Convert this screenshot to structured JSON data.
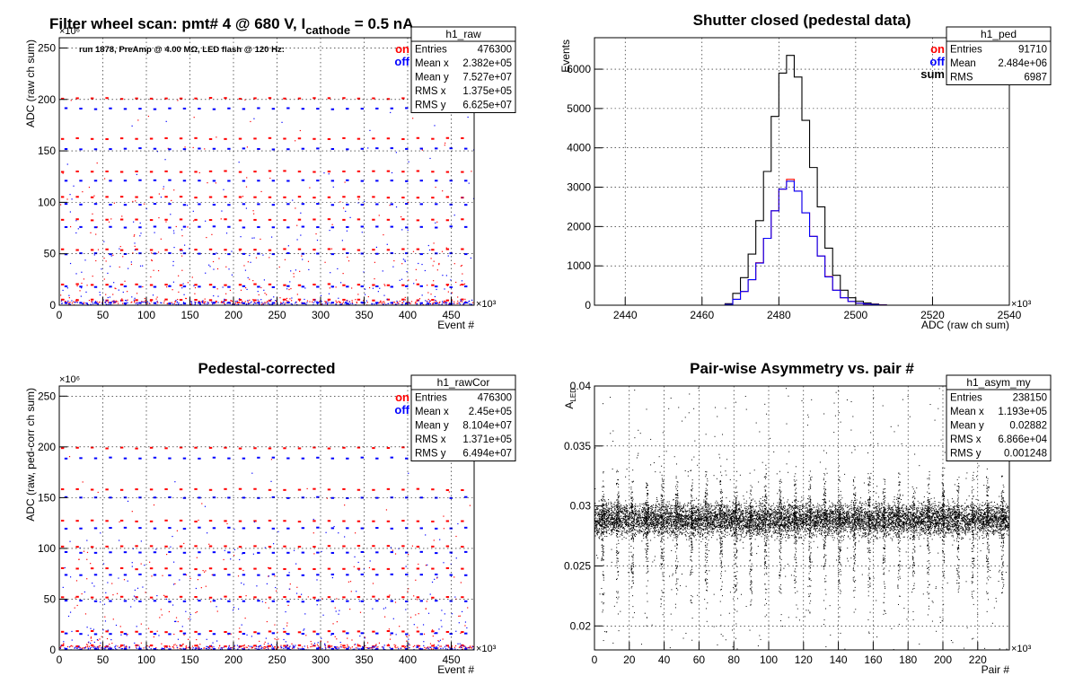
{
  "figure_title": {
    "main": "Filter wheel scan: pmt#   4 @   680 V, I",
    "sub": "cathode",
    "tail": " = 0.5 nA"
  },
  "colors": {
    "on": "#ff0000",
    "off": "#0000ff",
    "sum": "#000000",
    "frame": "#000000",
    "grid": "#000000"
  },
  "chart_data": [
    {
      "id": "raw",
      "type": "scatter",
      "title": "",
      "annotation": "run 1878, PreAmp @ 4.00 MΩ, LED flash @  120 Hz:",
      "xlabel": "Event #",
      "ylabel": "ADC (raw ch sum)",
      "x_multiplier": "×10³",
      "y_multiplier": "×10⁶",
      "xlim": [
        0,
        476300
      ],
      "ylim": [
        0,
        260
      ],
      "xticks": [
        0,
        50,
        100,
        150,
        200,
        250,
        300,
        350,
        400,
        450
      ],
      "yticks": [
        0,
        50,
        100,
        150,
        200,
        250
      ],
      "grid": true,
      "legend": [
        {
          "label": "on",
          "color": "#ff0000"
        },
        {
          "label": "off",
          "color": "#0000ff"
        }
      ],
      "legend_placement": "top-right",
      "stats": {
        "name": "h1_raw",
        "rows": [
          [
            "Entries",
            "476300"
          ],
          [
            "Mean x",
            "2.382e+05"
          ],
          [
            "Mean y",
            "7.527e+07"
          ],
          [
            "RMS x",
            "1.375e+05"
          ],
          [
            "RMS y",
            "6.625e+07"
          ]
        ]
      },
      "series": [
        {
          "name": "on",
          "color": "#ff0000",
          "levels": [
            201,
            162,
            130,
            105,
            83,
            54,
            20,
            5
          ]
        },
        {
          "name": "off",
          "color": "#0000ff",
          "levels": [
            191,
            152,
            121,
            98,
            76,
            50,
            18,
            2
          ]
        }
      ],
      "period_events": 17000
    },
    {
      "id": "ped",
      "type": "histogram",
      "title": "Shutter closed (pedestal data)",
      "xlabel": "ADC (raw ch sum)",
      "ylabel": "Events",
      "x_multiplier": "×10³",
      "xlim": [
        2432,
        2540
      ],
      "ylim": [
        0,
        6800
      ],
      "xticks": [
        2440,
        2460,
        2480,
        2500,
        2520,
        2540
      ],
      "yticks": [
        0,
        1000,
        2000,
        3000,
        4000,
        5000,
        6000
      ],
      "grid": true,
      "legend": [
        {
          "label": "on",
          "color": "#ff0000"
        },
        {
          "label": "off",
          "color": "#0000ff"
        },
        {
          "label": "sum",
          "color": "#000000"
        }
      ],
      "legend_placement": "top-right",
      "stats": {
        "name": "h1_ped",
        "rows": [
          [
            "Entries",
            "91710"
          ],
          [
            "Mean",
            "2.484e+06"
          ],
          [
            "RMS",
            "6987"
          ]
        ]
      },
      "bins": [
        2466,
        2468,
        2470,
        2472,
        2474,
        2476,
        2478,
        2480,
        2482,
        2484,
        2486,
        2488,
        2490,
        2492,
        2494,
        2496,
        2498,
        2500,
        2502,
        2504,
        2506
      ],
      "series": [
        {
          "name": "sum",
          "color": "#000000",
          "values": [
            40,
            300,
            700,
            1300,
            2150,
            3400,
            4800,
            5900,
            6350,
            5800,
            4700,
            3500,
            2500,
            1450,
            760,
            380,
            190,
            100,
            60,
            30,
            10
          ]
        },
        {
          "name": "on",
          "color": "#ff0000",
          "values": [
            20,
            150,
            350,
            650,
            1080,
            1700,
            2400,
            2950,
            3200,
            2900,
            2350,
            1750,
            1250,
            730,
            380,
            190,
            95,
            50,
            30,
            15,
            5
          ]
        },
        {
          "name": "off",
          "color": "#0000ff",
          "values": [
            20,
            150,
            350,
            650,
            1070,
            1700,
            2400,
            2950,
            3150,
            2900,
            2350,
            1750,
            1250,
            720,
            380,
            190,
            95,
            50,
            30,
            15,
            5
          ]
        }
      ]
    },
    {
      "id": "rawCor",
      "type": "scatter",
      "title": "Pedestal-corrected",
      "xlabel": "Event #",
      "ylabel": "ADC (raw, ped-corr ch sum)",
      "x_multiplier": "×10³",
      "y_multiplier": "×10⁶",
      "xlim": [
        0,
        476300
      ],
      "ylim": [
        0,
        260
      ],
      "xticks": [
        0,
        50,
        100,
        150,
        200,
        250,
        300,
        350,
        400,
        450
      ],
      "yticks": [
        0,
        50,
        100,
        150,
        200,
        250
      ],
      "grid": true,
      "legend": [
        {
          "label": "on",
          "color": "#ff0000"
        },
        {
          "label": "off",
          "color": "#0000ff"
        }
      ],
      "legend_placement": "top-right",
      "stats": {
        "name": "h1_rawCor",
        "rows": [
          [
            "Entries",
            "476300"
          ],
          [
            "Mean x",
            "2.45e+05"
          ],
          [
            "Mean y",
            "8.104e+07"
          ],
          [
            "RMS x",
            "1.371e+05"
          ],
          [
            "RMS y",
            "6.494e+07"
          ]
        ]
      },
      "series": [
        {
          "name": "on",
          "color": "#ff0000",
          "levels": [
            199,
            158,
            127,
            102,
            80,
            52,
            18,
            4
          ]
        },
        {
          "name": "off",
          "color": "#0000ff",
          "levels": [
            189,
            150,
            120,
            96,
            74,
            48,
            16,
            1
          ]
        }
      ],
      "period_events": 17000
    },
    {
      "id": "asym",
      "type": "scatter",
      "title": "Pair-wise Asymmetry vs. pair #",
      "xlabel": "Pair #",
      "ylabel": "A_LED",
      "x_multiplier": "×10³",
      "xlim": [
        0,
        238150
      ],
      "ylim": [
        0.018,
        0.04
      ],
      "xticks": [
        0,
        20,
        40,
        60,
        80,
        100,
        120,
        140,
        160,
        180,
        200,
        220
      ],
      "yticks": [
        0.02,
        0.025,
        0.03,
        0.035,
        0.04
      ],
      "grid": true,
      "stats": {
        "name": "h1_asym_my",
        "rows": [
          [
            "Entries",
            "238150"
          ],
          [
            "Mean x",
            "1.193e+05"
          ],
          [
            "Mean y",
            "0.02882"
          ],
          [
            "RMS x",
            "6.866e+04"
          ],
          [
            "RMS y",
            "0.001248"
          ]
        ]
      },
      "series": [
        {
          "name": "",
          "color": "#000000",
          "center": 0.0289,
          "spread": 0.0012
        }
      ],
      "spike_pairs": [
        4500,
        13000,
        21500,
        30000,
        38500,
        47000,
        55500,
        64000,
        72500,
        81000,
        89500,
        98000,
        106500,
        115000,
        123500,
        132000,
        140500,
        149000,
        157500,
        166000,
        174500,
        183000,
        191500,
        200000,
        208500,
        217000,
        225500,
        234000
      ]
    }
  ]
}
